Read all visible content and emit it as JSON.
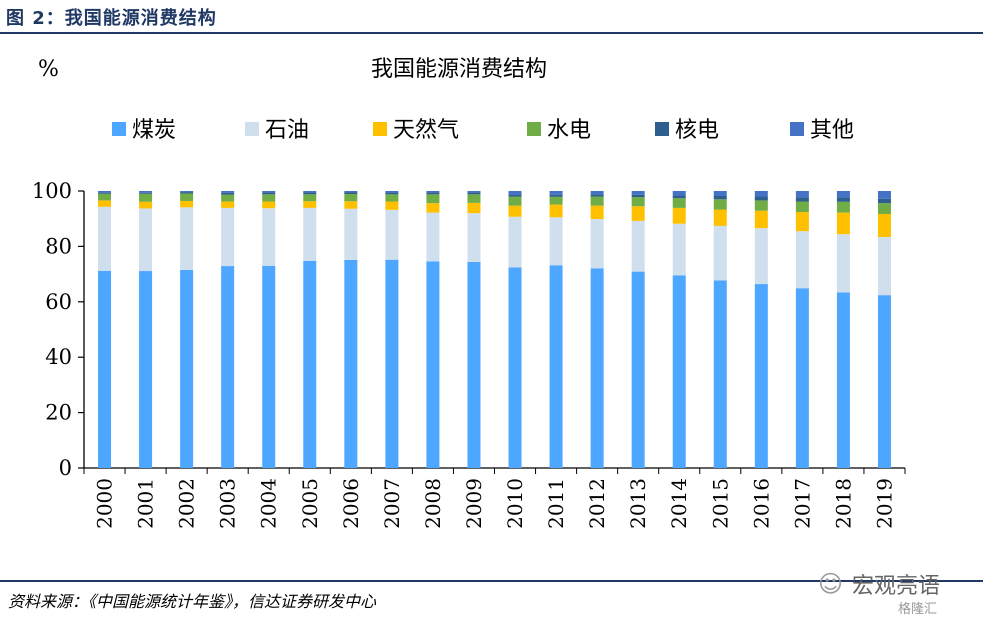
{
  "figure_caption": "图 2：我国能源消费结构",
  "source_note": "资料来源：《中国能源统计年鉴》，信达证券研发中心",
  "watermark": {
    "icon": "wechat-icon",
    "text": "宏观亮语",
    "sub": "格隆汇"
  },
  "chart_data": {
    "type": "bar",
    "stacked": true,
    "title": "我国能源消费结构",
    "ylabel": "%",
    "xlabel": "",
    "ylim": [
      0,
      100
    ],
    "yticks": [
      0,
      20,
      40,
      60,
      80,
      100
    ],
    "legend_position": "top",
    "categories": [
      "2000",
      "2001",
      "2002",
      "2003",
      "2004",
      "2005",
      "2006",
      "2007",
      "2008",
      "2009",
      "2010",
      "2011",
      "2012",
      "2013",
      "2014",
      "2015",
      "2016",
      "2017",
      "2018",
      "2019"
    ],
    "series": [
      {
        "name": "煤炭",
        "color": "#4da6ff",
        "values": [
          71.2,
          71.1,
          71.5,
          72.9,
          73.0,
          74.8,
          75.1,
          75.2,
          74.6,
          74.4,
          72.4,
          73.2,
          72.1,
          70.9,
          69.5,
          67.7,
          66.4,
          64.9,
          63.4,
          62.4
        ]
      },
      {
        "name": "石油",
        "color": "#d0dfee",
        "values": [
          23.1,
          22.6,
          22.6,
          21.0,
          20.8,
          19.1,
          18.5,
          18.0,
          17.6,
          17.6,
          18.3,
          17.3,
          17.8,
          18.3,
          18.7,
          19.7,
          20.2,
          20.6,
          21.0,
          21.0
        ]
      },
      {
        "name": "天然气",
        "color": "#ffc000",
        "values": [
          2.3,
          2.4,
          2.3,
          2.3,
          2.4,
          2.4,
          2.7,
          3.0,
          3.4,
          3.7,
          4.0,
          4.6,
          4.8,
          5.3,
          5.7,
          5.9,
          6.3,
          6.9,
          7.8,
          8.3
        ]
      },
      {
        "name": "水电",
        "color": "#70ad47",
        "values": [
          2.4,
          2.9,
          2.7,
          2.5,
          2.6,
          2.5,
          2.6,
          2.6,
          3.2,
          3.1,
          3.3,
          2.8,
          3.3,
          3.3,
          3.5,
          3.7,
          3.7,
          3.8,
          3.9,
          3.9
        ]
      },
      {
        "name": "核电",
        "color": "#2e5f8e",
        "values": [
          0.4,
          0.4,
          0.5,
          0.7,
          0.7,
          0.7,
          0.7,
          0.7,
          0.7,
          0.7,
          0.7,
          0.7,
          0.8,
          0.8,
          1.0,
          1.2,
          1.4,
          1.5,
          1.6,
          1.6
        ]
      },
      {
        "name": "其他",
        "color": "#4472c4",
        "values": [
          0.6,
          0.6,
          0.4,
          0.6,
          0.5,
          0.5,
          0.4,
          0.5,
          0.5,
          0.5,
          1.3,
          1.4,
          1.2,
          1.4,
          1.6,
          1.8,
          2.0,
          2.3,
          2.3,
          2.8
        ]
      }
    ]
  }
}
